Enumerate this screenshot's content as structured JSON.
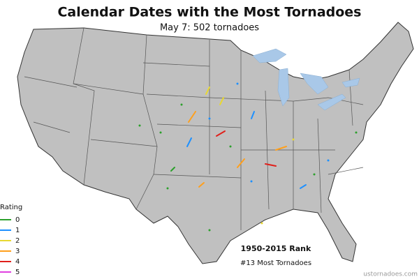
{
  "title": "Calendar Dates with the Most Tornadoes",
  "subtitle": "May 7: 502 tornadoes",
  "legend": {
    "title": "Rating",
    "items": [
      {
        "label": "0",
        "color": "#2ca02c"
      },
      {
        "label": "1",
        "color": "#1e90ff"
      },
      {
        "label": "2",
        "color": "#e8d833"
      },
      {
        "label": "3",
        "color": "#ff9f1c"
      },
      {
        "label": "4",
        "color": "#e0201b"
      },
      {
        "label": "5",
        "color": "#e040e0"
      }
    ]
  },
  "rank": {
    "title": "1950-2015 Rank",
    "text": "#13 Most Tornadoes"
  },
  "credit": "ustornadoes.com"
}
